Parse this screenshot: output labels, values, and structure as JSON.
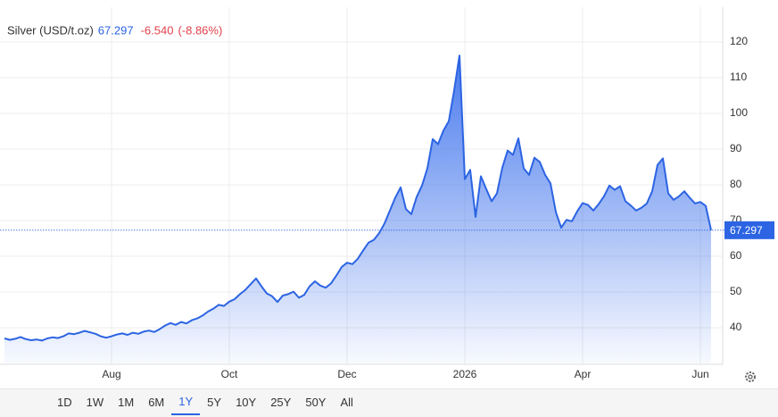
{
  "header": {
    "title": "Silver (USD/t.oz)",
    "change": "-6.540",
    "change_pct": "(-8.86%)"
  },
  "range_buttons": [
    "1D",
    "1W",
    "1M",
    "6M",
    "1Y",
    "5Y",
    "10Y",
    "25Y",
    "50Y",
    "All"
  ],
  "active_range": "1Y",
  "chart_data": {
    "type": "area",
    "color": "#2c64e3",
    "grid": true,
    "categories": [
      null,
      null,
      null,
      null,
      null,
      null,
      null,
      null,
      null,
      null,
      null,
      null,
      null,
      null,
      null,
      null,
      null,
      null,
      null,
      null,
      "Aug",
      null,
      null,
      null,
      null,
      null,
      null,
      null,
      null,
      null,
      null,
      null,
      null,
      null,
      null,
      null,
      null,
      null,
      null,
      null,
      null,
      null,
      "Oct",
      null,
      null,
      null,
      null,
      null,
      null,
      null,
      null,
      null,
      null,
      null,
      null,
      null,
      null,
      null,
      null,
      null,
      null,
      null,
      null,
      null,
      "Dec",
      null,
      null,
      null,
      null,
      null,
      null,
      null,
      null,
      null,
      null,
      null,
      null,
      null,
      null,
      null,
      null,
      null,
      null,
      null,
      null,
      null,
      "2026",
      null,
      null,
      null,
      null,
      null,
      null,
      null,
      null,
      null,
      null,
      null,
      null,
      null,
      null,
      null,
      null,
      null,
      null,
      null,
      null,
      null,
      "Apr",
      null,
      null,
      null,
      null,
      null,
      null,
      null,
      null,
      null,
      null,
      null,
      null,
      null,
      null,
      null,
      null,
      null,
      null,
      null,
      null,
      null,
      "Jun",
      null,
      null
    ],
    "values": [
      37.0,
      36.6,
      36.9,
      37.4,
      36.8,
      36.5,
      36.7,
      36.4,
      37.0,
      37.3,
      37.1,
      37.6,
      38.4,
      38.2,
      38.6,
      39.1,
      38.7,
      38.3,
      37.6,
      37.2,
      37.6,
      38.1,
      38.4,
      38.0,
      38.6,
      38.3,
      38.9,
      39.2,
      38.8,
      39.6,
      40.6,
      41.3,
      40.8,
      41.6,
      41.2,
      42.1,
      42.6,
      43.4,
      44.5,
      45.3,
      46.4,
      46.1,
      47.3,
      48.0,
      49.4,
      50.6,
      52.2,
      53.8,
      51.6,
      49.6,
      48.8,
      47.2,
      49.0,
      49.4,
      50.1,
      48.4,
      49.2,
      51.6,
      53.0,
      51.8,
      51.2,
      52.4,
      54.6,
      57.0,
      58.2,
      57.8,
      59.3,
      61.6,
      63.8,
      64.6,
      66.5,
      69.2,
      72.8,
      76.4,
      79.3,
      73.2,
      71.8,
      76.6,
      79.8,
      84.6,
      92.8,
      91.4,
      95.2,
      97.8,
      106.4,
      116.2,
      81.6,
      84.2,
      71.0,
      82.4,
      78.8,
      75.4,
      77.6,
      84.8,
      89.6,
      88.4,
      93.0,
      84.6,
      82.8,
      87.6,
      86.4,
      82.8,
      80.4,
      72.4,
      68.0,
      70.2,
      69.8,
      72.6,
      74.9,
      74.4,
      72.8,
      74.6,
      76.8,
      79.8,
      78.6,
      79.6,
      75.4,
      74.2,
      72.8,
      73.6,
      74.8,
      78.2,
      85.6,
      87.4,
      77.6,
      75.8,
      76.8,
      78.2,
      76.4,
      74.8,
      75.2,
      74.1,
      67.297
    ],
    "ylim": [
      30,
      129
    ],
    "yticks": [
      40,
      50,
      60,
      70,
      80,
      90,
      100,
      110,
      120
    ]
  }
}
